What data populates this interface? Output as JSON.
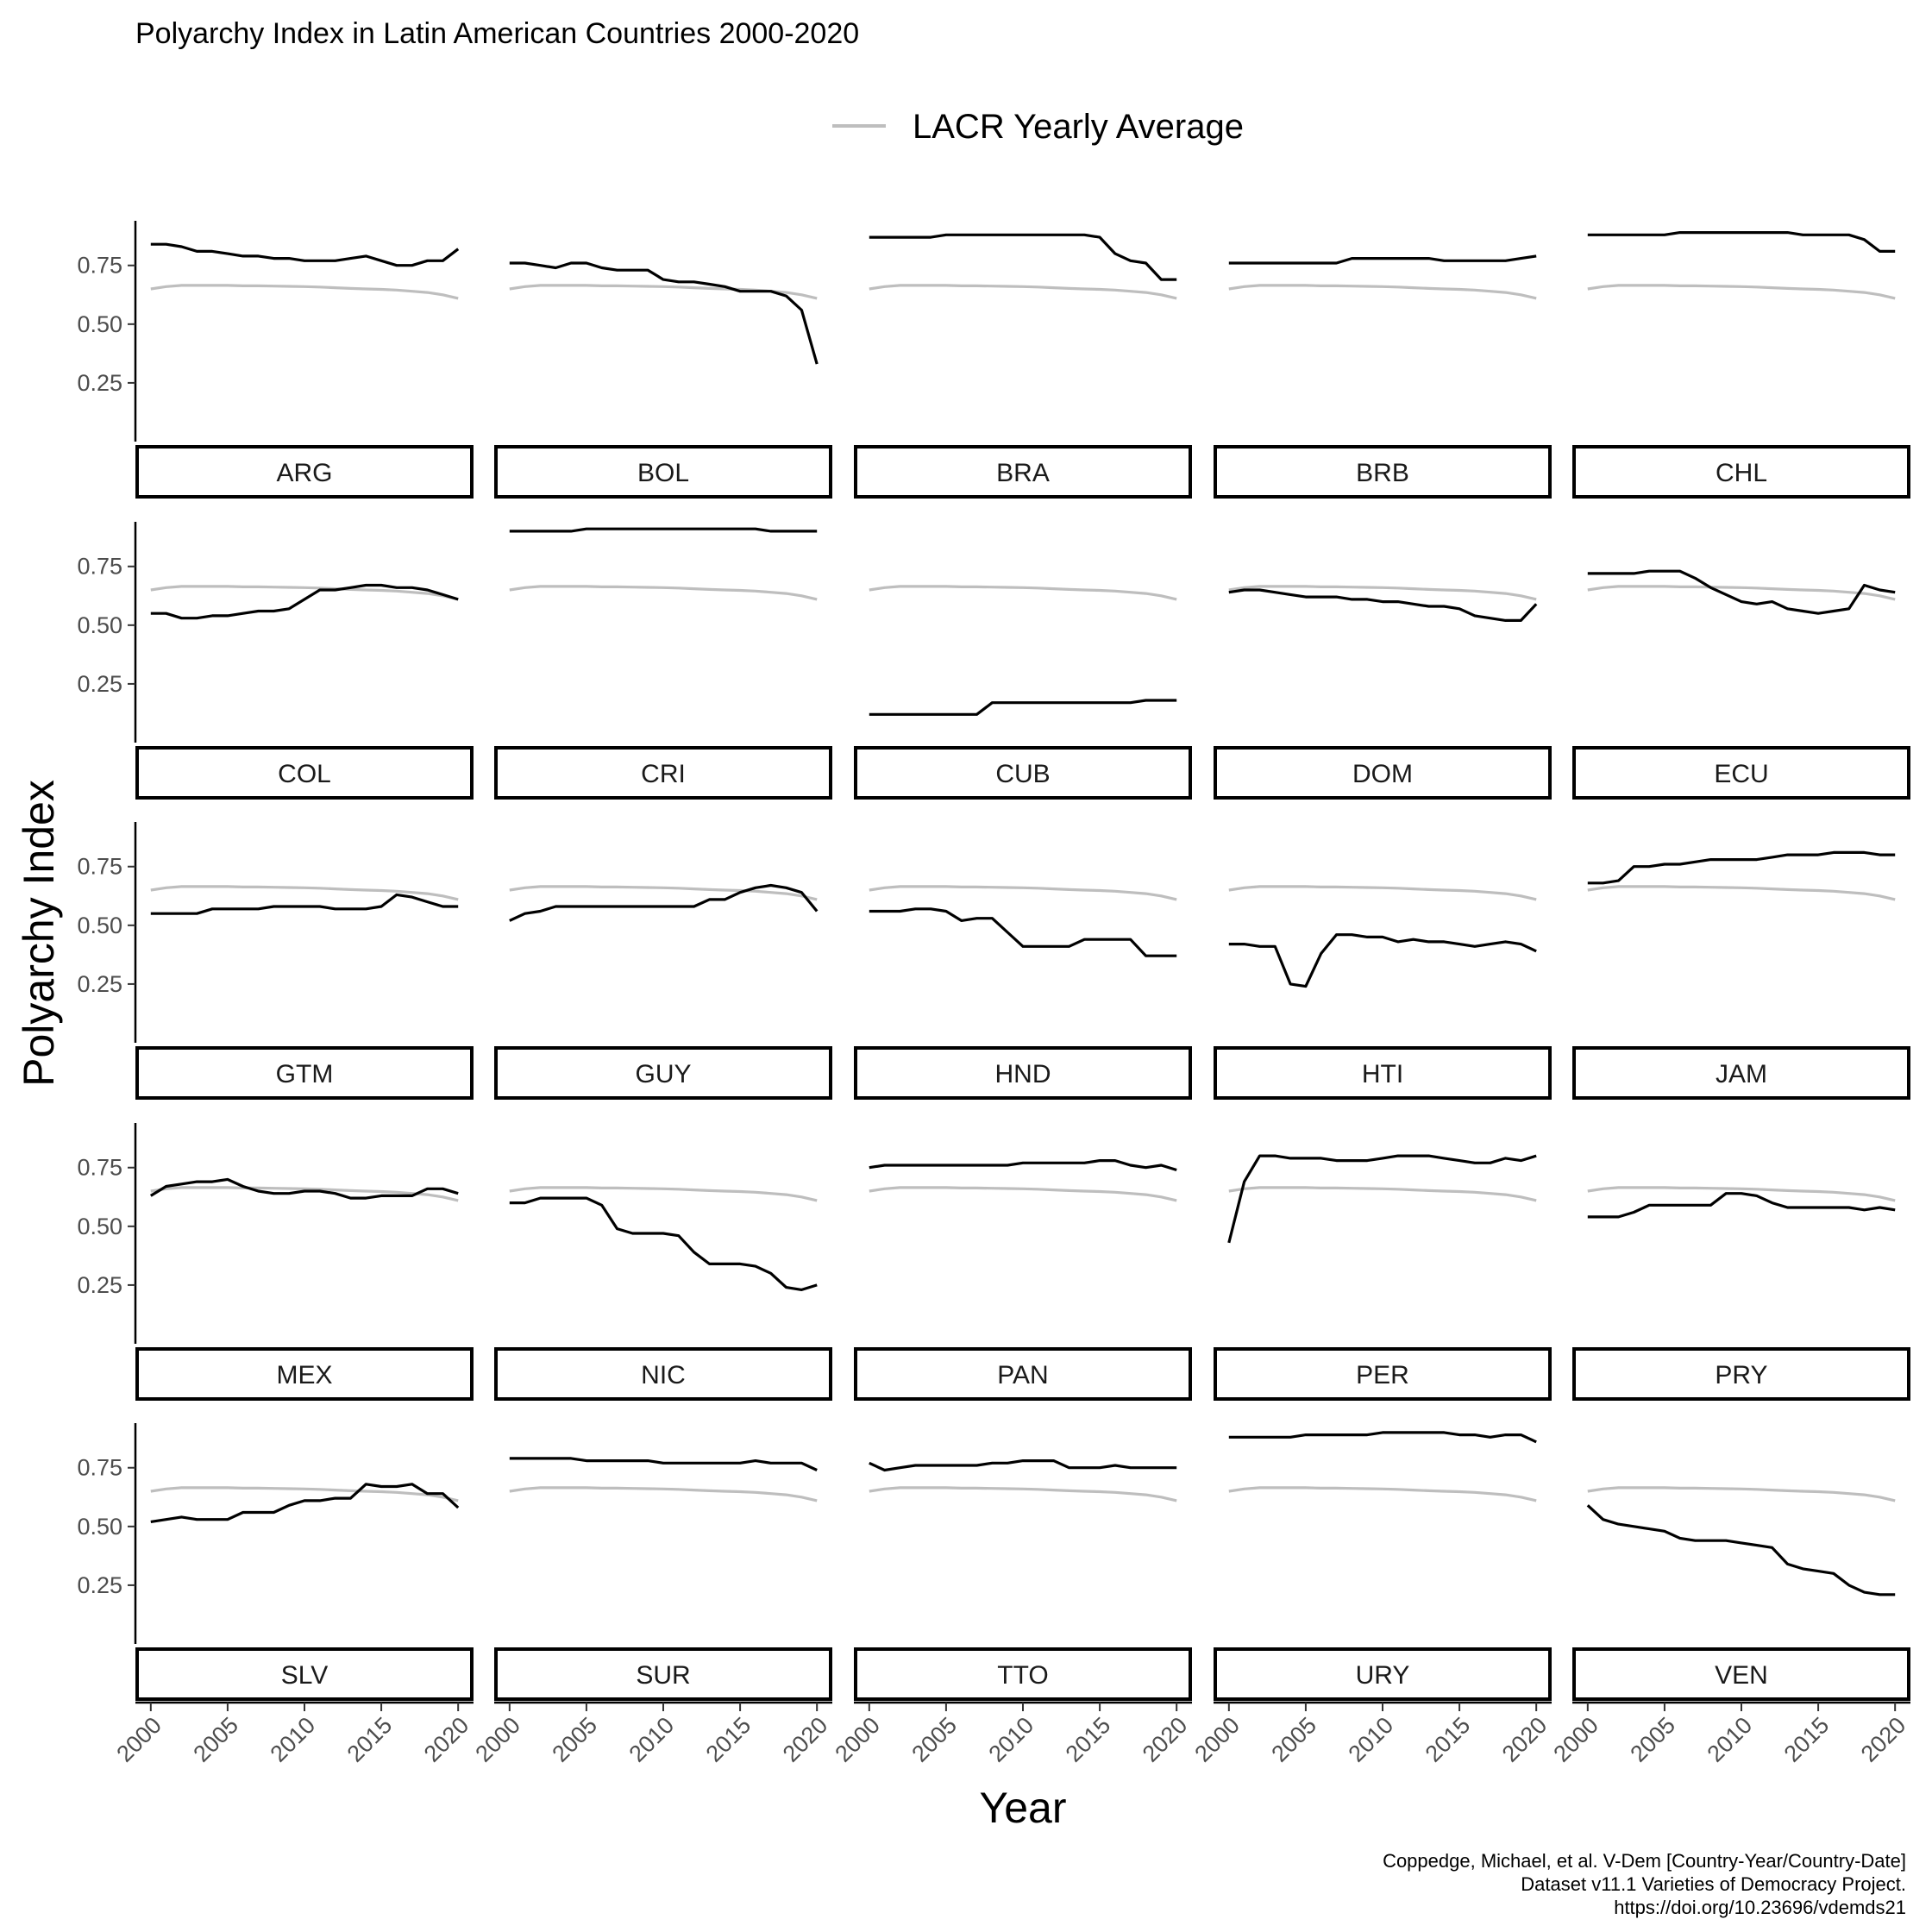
{
  "chart_data": {
    "type": "line",
    "title": "Polyarchy Index in Latin American Countries 2000-2020",
    "xlabel": "Year",
    "ylabel": "Polyarchy Index",
    "xlim": [
      1999,
      2021
    ],
    "ylim": [
      0.0,
      0.94
    ],
    "x_ticks": [
      2000,
      2005,
      2010,
      2015,
      2020
    ],
    "y_ticks": [
      0.25,
      0.5,
      0.75
    ],
    "y_tick_labels": [
      "0.25",
      "0.50",
      "0.75"
    ],
    "legend": {
      "position": "top",
      "entries": [
        "LACR Yearly Average"
      ]
    },
    "caption": [
      "Coppedge, Michael, et al. V-Dem [Country-Year/Country-Date]",
      "Dataset v11.1 Varieties of Democracy Project.",
      "https://doi.org/10.23696/vdemds21"
    ],
    "colors": {
      "country": "#000000",
      "average": "#bebebe",
      "strip_border": "#000000"
    },
    "years": [
      2000,
      2001,
      2002,
      2003,
      2004,
      2005,
      2006,
      2007,
      2008,
      2009,
      2010,
      2011,
      2012,
      2013,
      2014,
      2015,
      2016,
      2017,
      2018,
      2019,
      2020
    ],
    "average": {
      "name": "LACR Yearly Average",
      "values": [
        0.65,
        0.66,
        0.665,
        0.665,
        0.665,
        0.665,
        0.663,
        0.663,
        0.662,
        0.661,
        0.66,
        0.658,
        0.655,
        0.652,
        0.65,
        0.648,
        0.645,
        0.64,
        0.635,
        0.625,
        0.61
      ]
    },
    "series": [
      {
        "name": "ARG",
        "values": [
          0.84,
          0.84,
          0.83,
          0.81,
          0.81,
          0.8,
          0.79,
          0.79,
          0.78,
          0.78,
          0.77,
          0.77,
          0.77,
          0.78,
          0.79,
          0.77,
          0.75,
          0.75,
          0.77,
          0.77,
          0.82
        ]
      },
      {
        "name": "BOL",
        "values": [
          0.76,
          0.76,
          0.75,
          0.74,
          0.76,
          0.76,
          0.74,
          0.73,
          0.73,
          0.73,
          0.69,
          0.68,
          0.68,
          0.67,
          0.66,
          0.64,
          0.64,
          0.64,
          0.62,
          0.56,
          0.33
        ]
      },
      {
        "name": "BRA",
        "values": [
          0.87,
          0.87,
          0.87,
          0.87,
          0.87,
          0.88,
          0.88,
          0.88,
          0.88,
          0.88,
          0.88,
          0.88,
          0.88,
          0.88,
          0.88,
          0.87,
          0.8,
          0.77,
          0.76,
          0.69,
          0.69
        ]
      },
      {
        "name": "BRB",
        "values": [
          0.76,
          0.76,
          0.76,
          0.76,
          0.76,
          0.76,
          0.76,
          0.76,
          0.78,
          0.78,
          0.78,
          0.78,
          0.78,
          0.78,
          0.77,
          0.77,
          0.77,
          0.77,
          0.77,
          0.78,
          0.79
        ]
      },
      {
        "name": "CHL",
        "values": [
          0.88,
          0.88,
          0.88,
          0.88,
          0.88,
          0.88,
          0.89,
          0.89,
          0.89,
          0.89,
          0.89,
          0.89,
          0.89,
          0.89,
          0.88,
          0.88,
          0.88,
          0.88,
          0.86,
          0.81,
          0.81
        ]
      },
      {
        "name": "COL",
        "values": [
          0.55,
          0.55,
          0.53,
          0.53,
          0.54,
          0.54,
          0.55,
          0.56,
          0.56,
          0.57,
          0.61,
          0.65,
          0.65,
          0.66,
          0.67,
          0.67,
          0.66,
          0.66,
          0.65,
          0.63,
          0.61
        ]
      },
      {
        "name": "CRI",
        "values": [
          0.9,
          0.9,
          0.9,
          0.9,
          0.9,
          0.91,
          0.91,
          0.91,
          0.91,
          0.91,
          0.91,
          0.91,
          0.91,
          0.91,
          0.91,
          0.91,
          0.91,
          0.9,
          0.9,
          0.9,
          0.9
        ]
      },
      {
        "name": "CUB",
        "values": [
          0.12,
          0.12,
          0.12,
          0.12,
          0.12,
          0.12,
          0.12,
          0.12,
          0.17,
          0.17,
          0.17,
          0.17,
          0.17,
          0.17,
          0.17,
          0.17,
          0.17,
          0.17,
          0.18,
          0.18,
          0.18
        ]
      },
      {
        "name": "DOM",
        "values": [
          0.64,
          0.65,
          0.65,
          0.64,
          0.63,
          0.62,
          0.62,
          0.62,
          0.61,
          0.61,
          0.6,
          0.6,
          0.59,
          0.58,
          0.58,
          0.57,
          0.54,
          0.53,
          0.52,
          0.52,
          0.59
        ]
      },
      {
        "name": "ECU",
        "values": [
          0.72,
          0.72,
          0.72,
          0.72,
          0.73,
          0.73,
          0.73,
          0.7,
          0.66,
          0.63,
          0.6,
          0.59,
          0.6,
          0.57,
          0.56,
          0.55,
          0.56,
          0.57,
          0.67,
          0.65,
          0.64
        ]
      },
      {
        "name": "GTM",
        "values": [
          0.55,
          0.55,
          0.55,
          0.55,
          0.57,
          0.57,
          0.57,
          0.57,
          0.58,
          0.58,
          0.58,
          0.58,
          0.57,
          0.57,
          0.57,
          0.58,
          0.63,
          0.62,
          0.6,
          0.58,
          0.58
        ]
      },
      {
        "name": "GUY",
        "values": [
          0.52,
          0.55,
          0.56,
          0.58,
          0.58,
          0.58,
          0.58,
          0.58,
          0.58,
          0.58,
          0.58,
          0.58,
          0.58,
          0.61,
          0.61,
          0.64,
          0.66,
          0.67,
          0.66,
          0.64,
          0.56
        ]
      },
      {
        "name": "HND",
        "values": [
          0.56,
          0.56,
          0.56,
          0.57,
          0.57,
          0.56,
          0.52,
          0.53,
          0.53,
          0.47,
          0.41,
          0.41,
          0.41,
          0.41,
          0.44,
          0.44,
          0.44,
          0.44,
          0.37,
          0.37,
          0.37
        ]
      },
      {
        "name": "HTI",
        "values": [
          0.42,
          0.42,
          0.41,
          0.41,
          0.25,
          0.24,
          0.38,
          0.46,
          0.46,
          0.45,
          0.45,
          0.43,
          0.44,
          0.43,
          0.43,
          0.42,
          0.41,
          0.42,
          0.43,
          0.42,
          0.39
        ]
      },
      {
        "name": "JAM",
        "values": [
          0.68,
          0.68,
          0.69,
          0.75,
          0.75,
          0.76,
          0.76,
          0.77,
          0.78,
          0.78,
          0.78,
          0.78,
          0.79,
          0.8,
          0.8,
          0.8,
          0.81,
          0.81,
          0.81,
          0.8,
          0.8
        ]
      },
      {
        "name": "MEX",
        "values": [
          0.63,
          0.67,
          0.68,
          0.69,
          0.69,
          0.7,
          0.67,
          0.65,
          0.64,
          0.64,
          0.65,
          0.65,
          0.64,
          0.62,
          0.62,
          0.63,
          0.63,
          0.63,
          0.66,
          0.66,
          0.64
        ]
      },
      {
        "name": "NIC",
        "values": [
          0.6,
          0.6,
          0.62,
          0.62,
          0.62,
          0.62,
          0.59,
          0.49,
          0.47,
          0.47,
          0.47,
          0.46,
          0.39,
          0.34,
          0.34,
          0.34,
          0.33,
          0.3,
          0.24,
          0.23,
          0.25
        ]
      },
      {
        "name": "PAN",
        "values": [
          0.75,
          0.76,
          0.76,
          0.76,
          0.76,
          0.76,
          0.76,
          0.76,
          0.76,
          0.76,
          0.77,
          0.77,
          0.77,
          0.77,
          0.77,
          0.78,
          0.78,
          0.76,
          0.75,
          0.76,
          0.74
        ]
      },
      {
        "name": "PER",
        "values": [
          0.43,
          0.69,
          0.8,
          0.8,
          0.79,
          0.79,
          0.79,
          0.78,
          0.78,
          0.78,
          0.79,
          0.8,
          0.8,
          0.8,
          0.79,
          0.78,
          0.77,
          0.77,
          0.79,
          0.78,
          0.8
        ]
      },
      {
        "name": "PRY",
        "values": [
          0.54,
          0.54,
          0.54,
          0.56,
          0.59,
          0.59,
          0.59,
          0.59,
          0.59,
          0.64,
          0.64,
          0.63,
          0.6,
          0.58,
          0.58,
          0.58,
          0.58,
          0.58,
          0.57,
          0.58,
          0.57
        ]
      },
      {
        "name": "SLV",
        "values": [
          0.52,
          0.53,
          0.54,
          0.53,
          0.53,
          0.53,
          0.56,
          0.56,
          0.56,
          0.59,
          0.61,
          0.61,
          0.62,
          0.62,
          0.68,
          0.67,
          0.67,
          0.68,
          0.64,
          0.64,
          0.58
        ]
      },
      {
        "name": "SUR",
        "values": [
          0.79,
          0.79,
          0.79,
          0.79,
          0.79,
          0.78,
          0.78,
          0.78,
          0.78,
          0.78,
          0.77,
          0.77,
          0.77,
          0.77,
          0.77,
          0.77,
          0.78,
          0.77,
          0.77,
          0.77,
          0.74
        ]
      },
      {
        "name": "TTO",
        "values": [
          0.77,
          0.74,
          0.75,
          0.76,
          0.76,
          0.76,
          0.76,
          0.76,
          0.77,
          0.77,
          0.78,
          0.78,
          0.78,
          0.75,
          0.75,
          0.75,
          0.76,
          0.75,
          0.75,
          0.75,
          0.75
        ]
      },
      {
        "name": "URY",
        "values": [
          0.88,
          0.88,
          0.88,
          0.88,
          0.88,
          0.89,
          0.89,
          0.89,
          0.89,
          0.89,
          0.9,
          0.9,
          0.9,
          0.9,
          0.9,
          0.89,
          0.89,
          0.88,
          0.89,
          0.89,
          0.86
        ]
      },
      {
        "name": "VEN",
        "values": [
          0.59,
          0.53,
          0.51,
          0.5,
          0.49,
          0.48,
          0.45,
          0.44,
          0.44,
          0.44,
          0.43,
          0.42,
          0.41,
          0.34,
          0.32,
          0.31,
          0.3,
          0.25,
          0.22,
          0.21,
          0.21
        ]
      }
    ]
  }
}
